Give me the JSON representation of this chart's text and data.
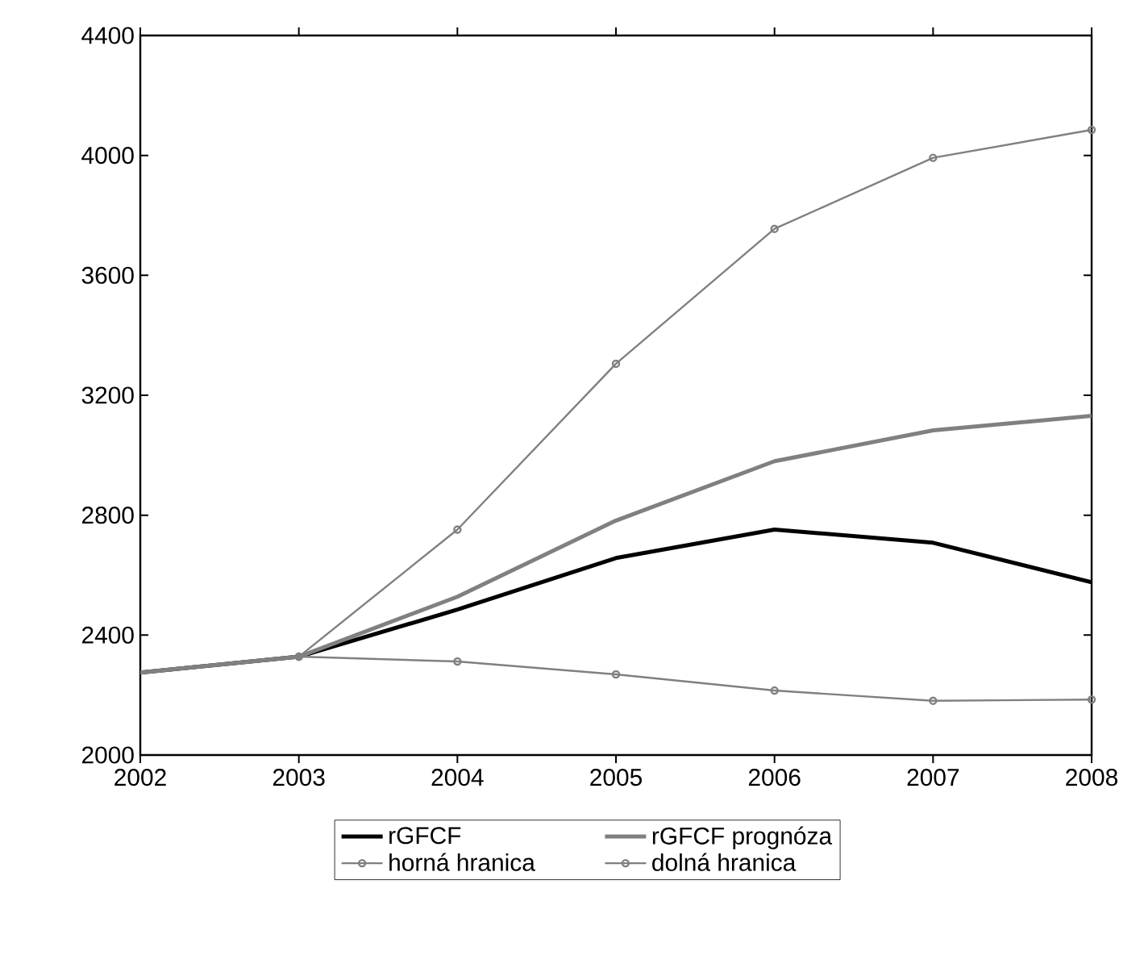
{
  "chart_data": {
    "type": "line",
    "x": [
      2002,
      2003,
      2004,
      2005,
      2006,
      2007,
      2008
    ],
    "series": [
      {
        "name": "rGFCF",
        "color": "#000000",
        "values": [
          2275,
          2328,
          2485,
          2657,
          2752,
          2708,
          2576
        ]
      },
      {
        "name": "rGFCF prognóza",
        "color": "#808080",
        "values": [
          2275,
          2328,
          2528,
          2782,
          2980,
          3083,
          3131
        ]
      },
      {
        "name": "horná hranica",
        "color": "#808080",
        "marker": "circle",
        "values": [
          null,
          2328,
          2752,
          3305,
          3755,
          3992,
          4085
        ]
      },
      {
        "name": "dolná hranica",
        "color": "#808080",
        "marker": "circle",
        "values": [
          null,
          2328,
          2312,
          2269,
          2215,
          2181,
          2185
        ]
      }
    ],
    "xlim": [
      2002,
      2008
    ],
    "xticks": [
      2002,
      2003,
      2004,
      2005,
      2006,
      2007,
      2008
    ],
    "ylim": [
      2000,
      4400
    ],
    "yticks": [
      2000,
      2400,
      2800,
      3200,
      3600,
      4000,
      4400
    ],
    "grid": false,
    "legend": "bottom"
  }
}
